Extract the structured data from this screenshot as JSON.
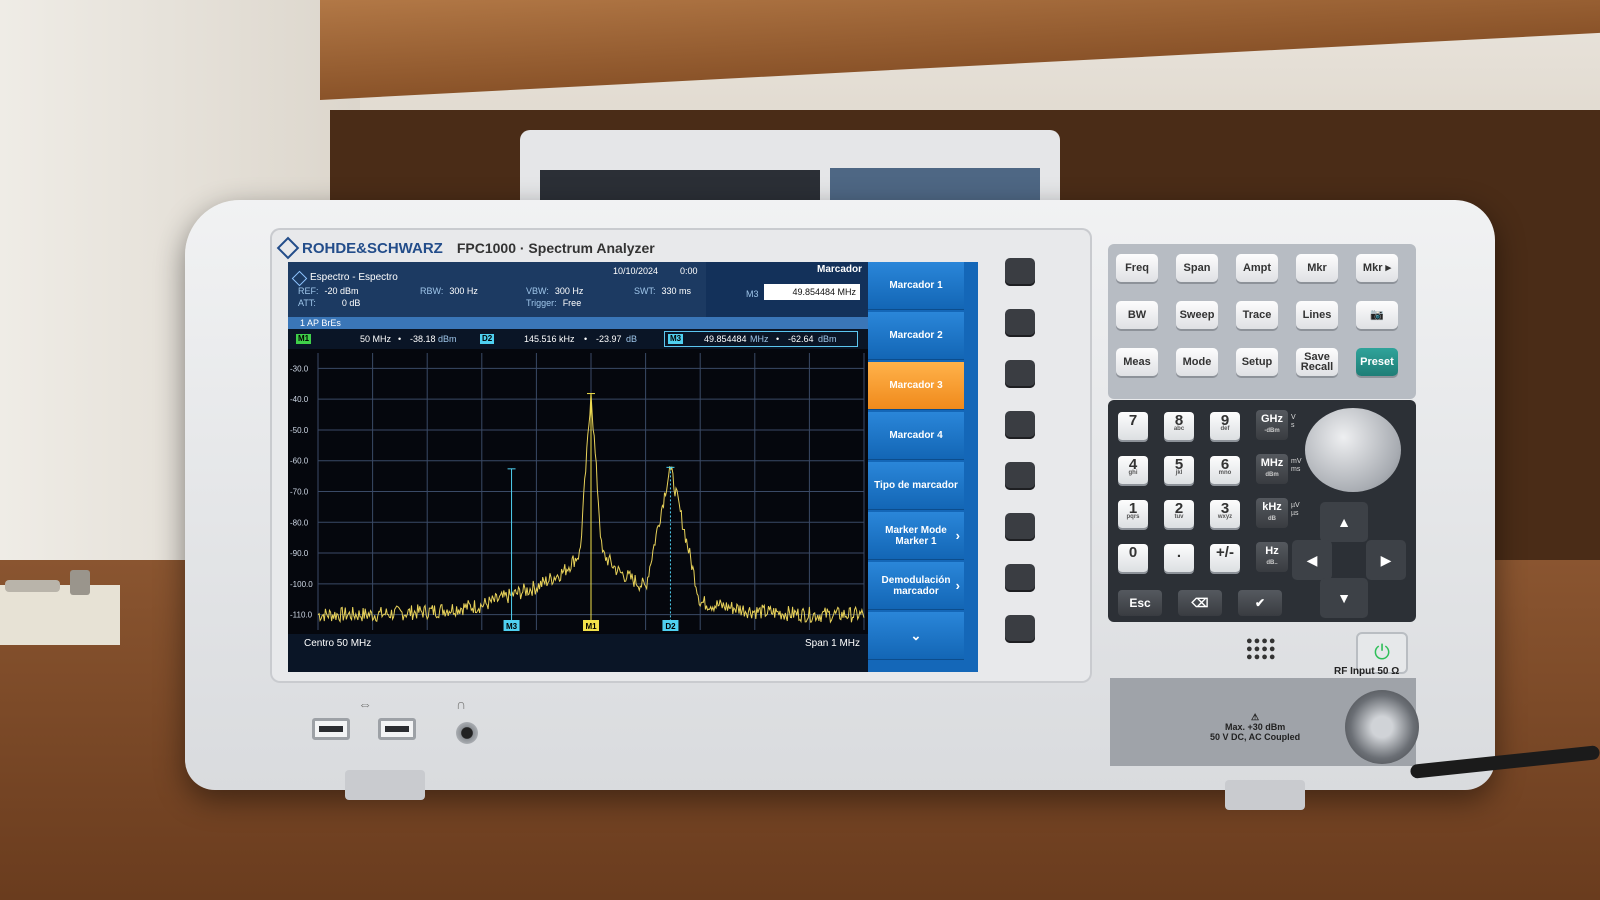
{
  "device": {
    "brand": "ROHDE&SCHWARZ",
    "model": "FPC1000 · Spectrum Analyzer"
  },
  "screen": {
    "title": "Espectro - Espectro",
    "date": "10/10/2024",
    "time": "0:00",
    "settings": {
      "ref_label": "REF:",
      "ref_value": "-20 dBm",
      "att_label": "ATT:",
      "att_value": "0 dB",
      "rbw_label": "RBW:",
      "rbw_value": "300 Hz",
      "vbw_label": "VBW:",
      "vbw_value": "300 Hz",
      "trigger_label": "Trigger:",
      "trigger_value": "Free",
      "swt_label": "SWT:",
      "swt_value": "330 ms"
    },
    "marker_header": "Marcador",
    "m3_label": "M3",
    "m3_input": "49.854484 MHz",
    "trace_label": "1 AP BrEs",
    "marker_readout": {
      "m1_badge": "M1",
      "m1_freq": "50 MHz",
      "m1_level": "-38.18",
      "m1_unit": "dBm",
      "d2_badge": "D2",
      "d2_freq": "145.516 kHz",
      "d2_level": "-23.97",
      "d2_unit": "dB",
      "m3_badge": "M3",
      "m3_freq": "49.854484",
      "m3_freq_unit": "MHz",
      "m3_level": "-62.64",
      "m3_unit": "dBm"
    },
    "footer": {
      "center": "Centro 50 MHz",
      "span": "Span 1 MHz"
    },
    "softkeys": [
      {
        "label": "Marcador 1",
        "active": false,
        "chevron": false
      },
      {
        "label": "Marcador 2",
        "active": false,
        "chevron": false
      },
      {
        "label": "Marcador 3",
        "active": true,
        "chevron": false
      },
      {
        "label": "Marcador 4",
        "active": false,
        "chevron": false
      },
      {
        "label": "Tipo de marcador",
        "active": false,
        "chevron": false
      },
      {
        "label": "Marker Mode Marker 1",
        "active": false,
        "chevron": true
      },
      {
        "label": "Demodulación marcador",
        "active": false,
        "chevron": true
      }
    ],
    "more_glyph": "⌄",
    "chevron_glyph": "›"
  },
  "chart_data": {
    "type": "line",
    "title": "",
    "xlabel": "",
    "ylabel": "",
    "x_center_mhz": 50,
    "x_span_mhz": 1,
    "ylim": [
      -115,
      -25
    ],
    "y_ticks": [
      "-30.0",
      "-40.0",
      "-50.0",
      "-60.0",
      "-70.0",
      "-80.0",
      "-90.0",
      "-100.0",
      "-110.0"
    ],
    "grid": true,
    "noise_floor_dbm": -110,
    "series": [
      {
        "values_mhz": [
          49.6,
          49.7,
          49.8,
          49.85,
          49.9,
          49.95,
          49.98,
          50.0,
          50.02,
          50.05,
          50.1,
          50.145,
          50.2,
          50.3,
          50.4
        ],
        "values_dbm": [
          -110,
          -109,
          -107,
          -104,
          -101,
          -96,
          -90,
          -38,
          -90,
          -96,
          -101,
          -62,
          -106,
          -109,
          -110
        ]
      }
    ],
    "markers": [
      {
        "label": "M1",
        "x_mhz": 50.0,
        "y_dbm": -38.18,
        "color": "#f2e14a"
      },
      {
        "label": "M3",
        "x_mhz": 49.854484,
        "y_dbm": -62.64,
        "color": "#4fd0f0"
      },
      {
        "label": "D2",
        "x_mhz": 50.145516,
        "y_dbm": -62.15,
        "color": "#4fd0f0"
      }
    ]
  },
  "keypad": {
    "row1": [
      "Freq",
      "Span",
      "Ampt",
      "Mkr",
      "Mkr ▸"
    ],
    "row2": [
      "BW",
      "Sweep",
      "Trace",
      "Lines",
      "📷"
    ],
    "row3": [
      "Meas",
      "Mode",
      "Setup",
      "Save Recall",
      "Preset"
    ],
    "numbers": [
      {
        "n": "7",
        "s": ""
      },
      {
        "n": "8",
        "s": "abc"
      },
      {
        "n": "9",
        "s": "def"
      },
      {
        "n": "4",
        "s": "ghi"
      },
      {
        "n": "5",
        "s": "jkl"
      },
      {
        "n": "6",
        "s": "mno"
      },
      {
        "n": "1",
        "s": "pqrs"
      },
      {
        "n": "2",
        "s": "tuv"
      },
      {
        "n": "3",
        "s": "wxyz"
      },
      {
        "n": "0",
        "s": ""
      },
      {
        "n": ".",
        "s": ""
      },
      {
        "n": "+/-",
        "s": ""
      }
    ],
    "units": [
      {
        "u": "GHz",
        "s": "-dBm",
        "side": "V\ns"
      },
      {
        "u": "MHz",
        "s": "dBm",
        "side": "mV\nms"
      },
      {
        "u": "kHz",
        "s": "dB",
        "side": "µV\nµs"
      },
      {
        "u": "Hz",
        "s": "dB..",
        "side": ""
      }
    ],
    "esc": "Esc",
    "backspace": "⌫",
    "enter": "✔"
  },
  "rf": {
    "label": "RF Input 50 Ω",
    "warning_line1": "⚠",
    "warning_line2": "Max. +30 dBm",
    "warning_line3": "50 V DC, AC Coupled"
  },
  "ports": {
    "usb_symbol": "⭠",
    "headphone_symbol": "🎧"
  },
  "colors": {
    "softkey_active": "#f08a1c",
    "softkey": "#1366b5",
    "trace": "#e8d25a",
    "preset": "#1f7e77",
    "power_led": "#2fbf59"
  }
}
